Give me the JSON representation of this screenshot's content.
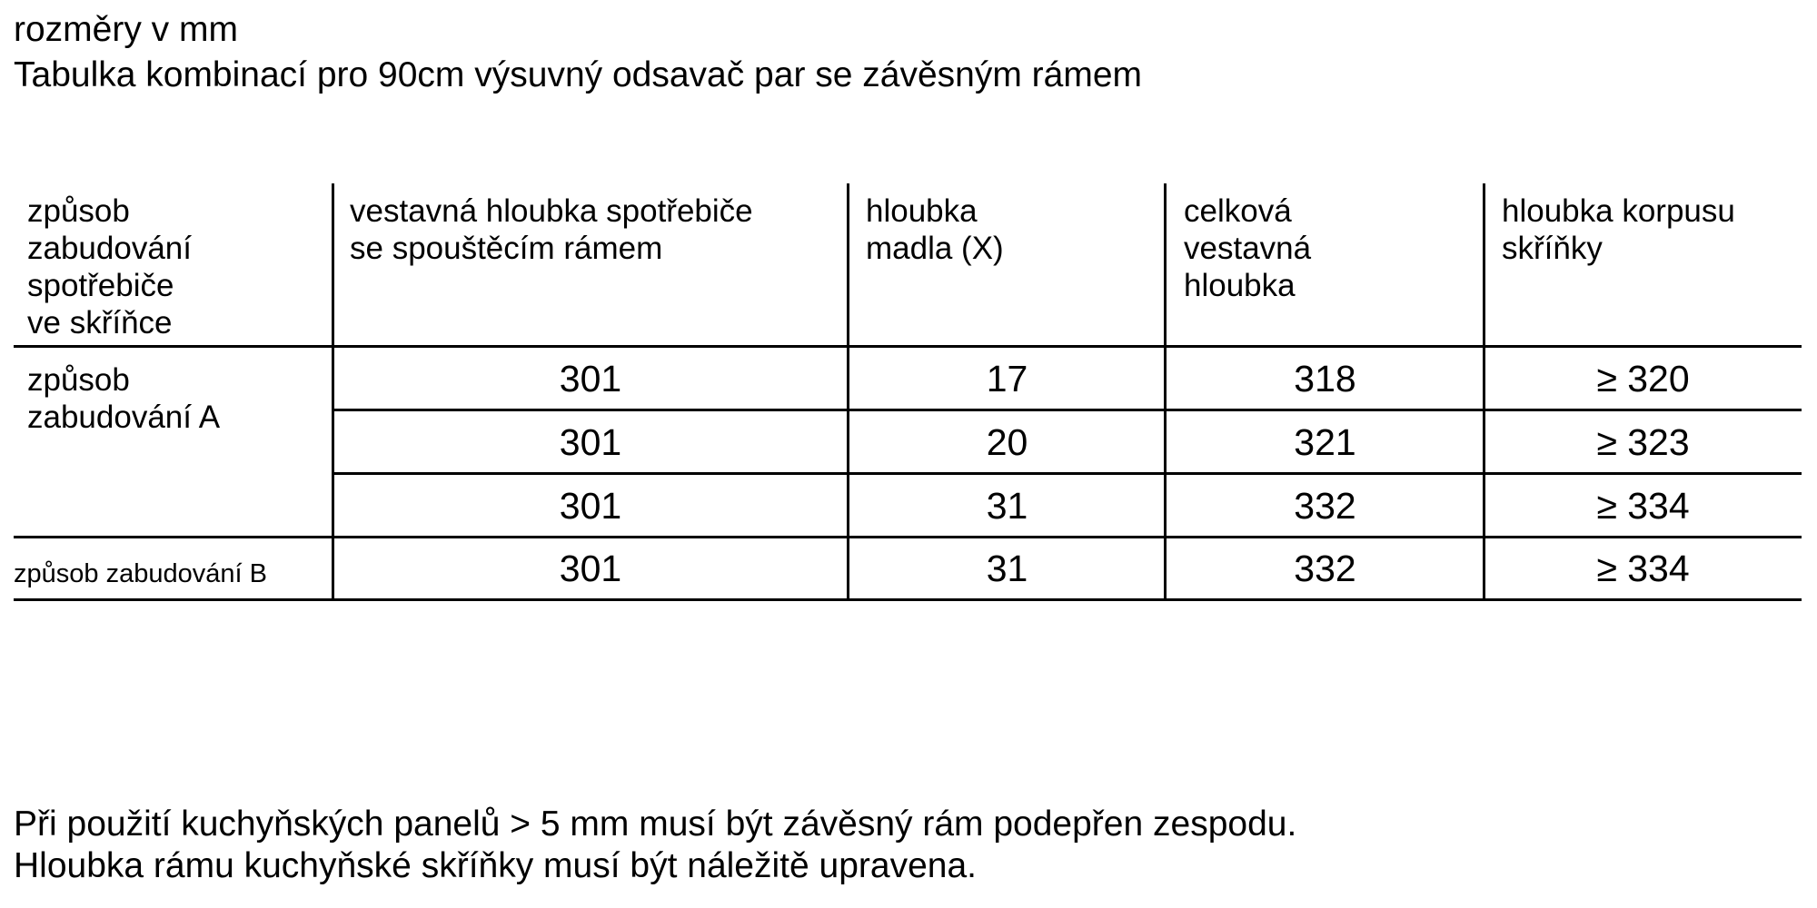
{
  "heading": {
    "units": "rozměry v mm",
    "title": "Tabulka kombinací pro 90cm výsuvný odsavač par se závěsným rámem"
  },
  "table": {
    "headers": [
      "způsob\nzabudování\nspotřebiče\nve skříňce",
      "vestavná hloubka spotřebiče\nse spouštěcím rámem",
      "hloubka\nmadla (X)",
      "celková\nvestavná\nhloubka",
      "hloubka korpusu\nskříňky"
    ],
    "groups": [
      {
        "label": "způsob\nzabudování A"
      },
      {
        "label": "způsob zabudování B"
      }
    ],
    "rows": [
      [
        "301",
        "17",
        "318",
        "≥ 320"
      ],
      [
        "301",
        "20",
        "321",
        "≥ 323"
      ],
      [
        "301",
        "31",
        "332",
        "≥ 334"
      ],
      [
        "301",
        "31",
        "332",
        "≥ 334"
      ]
    ]
  },
  "footer": {
    "line1": "Při použití kuchyňských panelů > 5 mm musí být závěsný rám podepřen zespodu.",
    "line2": "Hloubka rámu kuchyňské skříňky musí být náležitě upravena."
  }
}
